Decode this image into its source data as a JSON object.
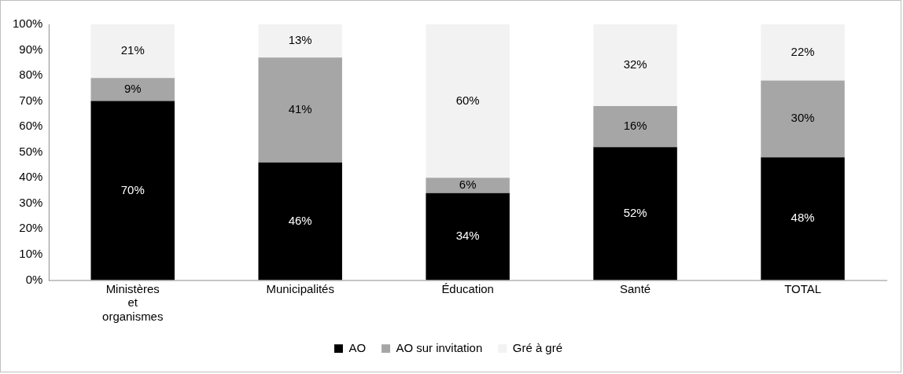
{
  "chart_data": {
    "type": "bar",
    "stacked": true,
    "categories": [
      "Ministères et organismes",
      "Municipalités",
      "Éducation",
      "Santé",
      "TOTAL"
    ],
    "series": [
      {
        "name": "AO",
        "color": "#000000",
        "values": [
          70,
          46,
          34,
          52,
          48
        ],
        "value_labels": [
          "70%",
          "46%",
          "34%",
          "52%",
          "48%"
        ]
      },
      {
        "name": "AO sur invitation",
        "color": "#a6a6a6",
        "values": [
          9,
          41,
          6,
          16,
          30
        ],
        "value_labels": [
          "9%",
          "41%",
          "6%",
          "16%",
          "30%"
        ]
      },
      {
        "name": "Gré à gré",
        "color": "#f2f2f2",
        "values": [
          21,
          13,
          60,
          32,
          22
        ],
        "value_labels": [
          "21%",
          "13%",
          "60%",
          "32%",
          "22%"
        ]
      }
    ],
    "ylim": [
      0,
      100
    ],
    "yticks": [
      {
        "value": 0,
        "label": "0%"
      },
      {
        "value": 10,
        "label": "10%"
      },
      {
        "value": 20,
        "label": "20%"
      },
      {
        "value": 30,
        "label": "30%"
      },
      {
        "value": 40,
        "label": "40%"
      },
      {
        "value": 50,
        "label": "50%"
      },
      {
        "value": 60,
        "label": "60%"
      },
      {
        "value": 70,
        "label": "70%"
      },
      {
        "value": 80,
        "label": "80%"
      },
      {
        "value": 90,
        "label": "90%"
      },
      {
        "value": 100,
        "label": "100%"
      }
    ],
    "grid": false,
    "legend": "bottom"
  }
}
